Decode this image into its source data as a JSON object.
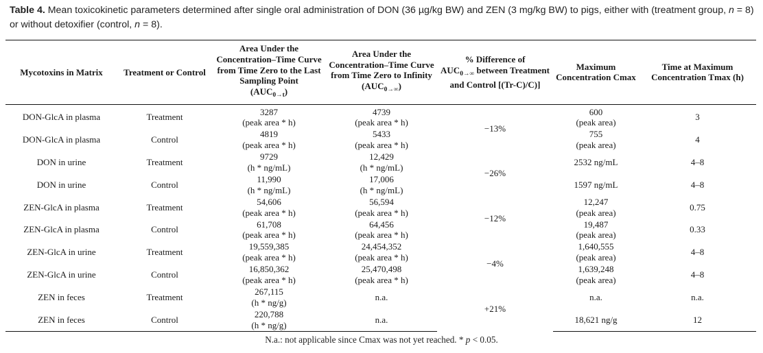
{
  "caption": {
    "label": "Table 4.",
    "text_1": " Mean toxicokinetic parameters determined after single oral administration of DON (36 µg/kg BW) and ZEN (3 mg/kg BW) to pigs, either with (treatment group, ",
    "n_symbol_1": "n",
    "text_2": " = 8) or without detoxifier (control, ",
    "n_symbol_2": "n",
    "text_3": " = 8)."
  },
  "headers": {
    "mycotoxins": "Mycotoxins in Matrix",
    "treatment_control": "Treatment or Control",
    "auc_t": "Area Under the Concentration–Time Curve from Time Zero to the Last Sampling Point",
    "auc_t_symbol": "AUC",
    "auc_t_sub": "0→t",
    "auc_inf": "Area Under the Concentration–Time Curve from Time Zero to Infinity",
    "auc_inf_symbol": "AUC",
    "auc_inf_sub": "0→∞",
    "pct_diff_prefix": "% Difference of",
    "pct_diff_symbol": "AUC",
    "pct_diff_sub": "0→∞",
    "pct_diff_suffix": " between Treatment and Control [(Tr-C)/C)]",
    "cmax": "Maximum Concentration Cmax",
    "tmax": "Time at Maximum Concentration Tmax (h)"
  },
  "rows": [
    {
      "matrix": "DON-GlcA in plasma",
      "group": "Treatment",
      "auc_t_value": "3287",
      "auc_t_unit": "(peak area * h)",
      "auc_inf_value": "4739",
      "auc_inf_unit": "(peak area * h)",
      "pct_diff": "−13%",
      "cmax_value": "600",
      "cmax_unit": "(peak area)",
      "tmax": "3"
    },
    {
      "matrix": "DON-GlcA in plasma",
      "group": "Control",
      "auc_t_value": "4819",
      "auc_t_unit": "(peak area * h)",
      "auc_inf_value": "5433",
      "auc_inf_unit": "(peak area * h)",
      "pct_diff": "",
      "cmax_value": "755",
      "cmax_unit": "(peak area)",
      "tmax": "4"
    },
    {
      "matrix": "DON in urine",
      "group": "Treatment",
      "auc_t_value": "9729",
      "auc_t_unit": "(h * ng/mL)",
      "auc_inf_value": "12,429",
      "auc_inf_unit": "(h * ng/mL)",
      "pct_diff": "−26%",
      "cmax_value": "2532 ng/mL",
      "cmax_unit": "",
      "tmax": "4–8"
    },
    {
      "matrix": "DON in urine",
      "group": "Control",
      "auc_t_value": "11,990",
      "auc_t_unit": "(h * ng/mL)",
      "auc_inf_value": "17,006",
      "auc_inf_unit": "(h * ng/mL)",
      "pct_diff": "",
      "cmax_value": "1597 ng/mL",
      "cmax_unit": "",
      "tmax": "4–8"
    },
    {
      "matrix": "ZEN-GlcA in plasma",
      "group": "Treatment",
      "auc_t_value": "54,606",
      "auc_t_unit": "(peak area * h)",
      "auc_inf_value": "56,594",
      "auc_inf_unit": "(peak area * h)",
      "pct_diff": "−12%",
      "cmax_value": "12,247",
      "cmax_unit": "(peak area)",
      "tmax": "0.75"
    },
    {
      "matrix": "ZEN-GlcA in plasma",
      "group": "Control",
      "auc_t_value": "61,708",
      "auc_t_unit": "(peak area * h)",
      "auc_inf_value": "64,456",
      "auc_inf_unit": "(peak area * h)",
      "pct_diff": "",
      "cmax_value": "19,487",
      "cmax_unit": "(peak area)",
      "tmax": "0.33"
    },
    {
      "matrix": "ZEN-GlcA in urine",
      "group": "Treatment",
      "auc_t_value": "19,559,385",
      "auc_t_unit": "(peak area * h)",
      "auc_inf_value": "24,454,352",
      "auc_inf_unit": "(peak area * h)",
      "pct_diff": "−4%",
      "cmax_value": "1,640,555",
      "cmax_unit": "(peak area)",
      "tmax": "4–8"
    },
    {
      "matrix": "ZEN-GlcA in urine",
      "group": "Control",
      "auc_t_value": "16,850,362",
      "auc_t_unit": "(peak area * h)",
      "auc_inf_value": "25,470,498",
      "auc_inf_unit": "(peak area * h)",
      "pct_diff": "",
      "cmax_value": "1,639,248",
      "cmax_unit": "(peak area)",
      "tmax": "4–8"
    },
    {
      "matrix": "ZEN in feces",
      "group": "Treatment",
      "auc_t_value": "267,115",
      "auc_t_unit": "(h * ng/g)",
      "auc_inf_value": "n.a.",
      "auc_inf_unit": "",
      "pct_diff": "+21%",
      "cmax_value": "n.a.",
      "cmax_unit": "",
      "tmax": "n.a."
    },
    {
      "matrix": "ZEN in feces",
      "group": "Control",
      "auc_t_value": "220,788",
      "auc_t_unit": "(h * ng/g)",
      "auc_inf_value": "n.a.",
      "auc_inf_unit": "",
      "pct_diff": "",
      "cmax_value": "18,621 ng/g",
      "cmax_unit": "",
      "tmax": "12"
    }
  ],
  "footnote": {
    "text": "N.a.: not applicable since Cmax was not yet reached. * ",
    "p_symbol": "p",
    "p_rest": " < 0.05."
  }
}
